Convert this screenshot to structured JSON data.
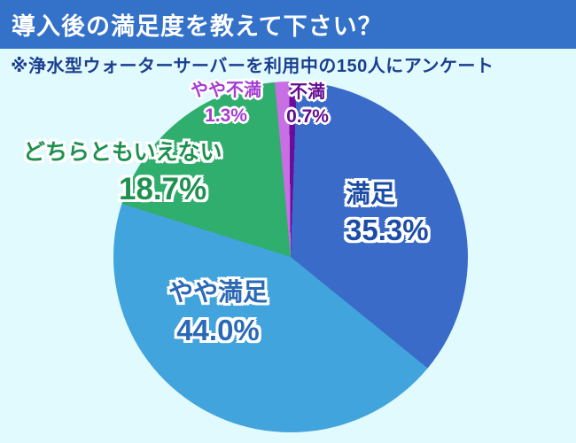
{
  "header": {
    "title": "導入後の満足度を教えて下さい？",
    "bg_color": "#3372c8",
    "text_color": "#ffffff"
  },
  "note": {
    "text": "※浄水型ウォーターサーバーを利用中の150人にアンケート",
    "color": "#1b3f8e"
  },
  "background_color": "#e1fafe",
  "chart_data": {
    "type": "pie",
    "title": "導入後の満足度を教えて下さい？",
    "subtitle": "※浄水型ウォーターサーバーを利用中の150人にアンケート",
    "sample_size": 150,
    "unit": "%",
    "direction": "clockwise",
    "start": "top",
    "rotation_deg": 2,
    "legend": "none",
    "slices": [
      {
        "label": "満足",
        "value_pct": 35.3,
        "pct_label": "35.3%",
        "color": "#3a6bc8",
        "label_color": "#1c4da6"
      },
      {
        "label": "やや満足",
        "value_pct": 44.0,
        "pct_label": "44.0%",
        "color": "#41a4dc",
        "label_color": "#2a69b5"
      },
      {
        "label": "どちらともいえない",
        "value_pct": 18.7,
        "pct_label": "18.7%",
        "color": "#2fae6e",
        "label_color": "#1e9150"
      },
      {
        "label": "やや不満",
        "value_pct": 1.3,
        "pct_label": "1.3%",
        "color": "#c96fe4",
        "label_color": "#a43ed3"
      },
      {
        "label": "不満",
        "value_pct": 0.7,
        "pct_label": "0.7%",
        "color": "#6b0d9c",
        "label_color": "#630d92"
      }
    ]
  }
}
